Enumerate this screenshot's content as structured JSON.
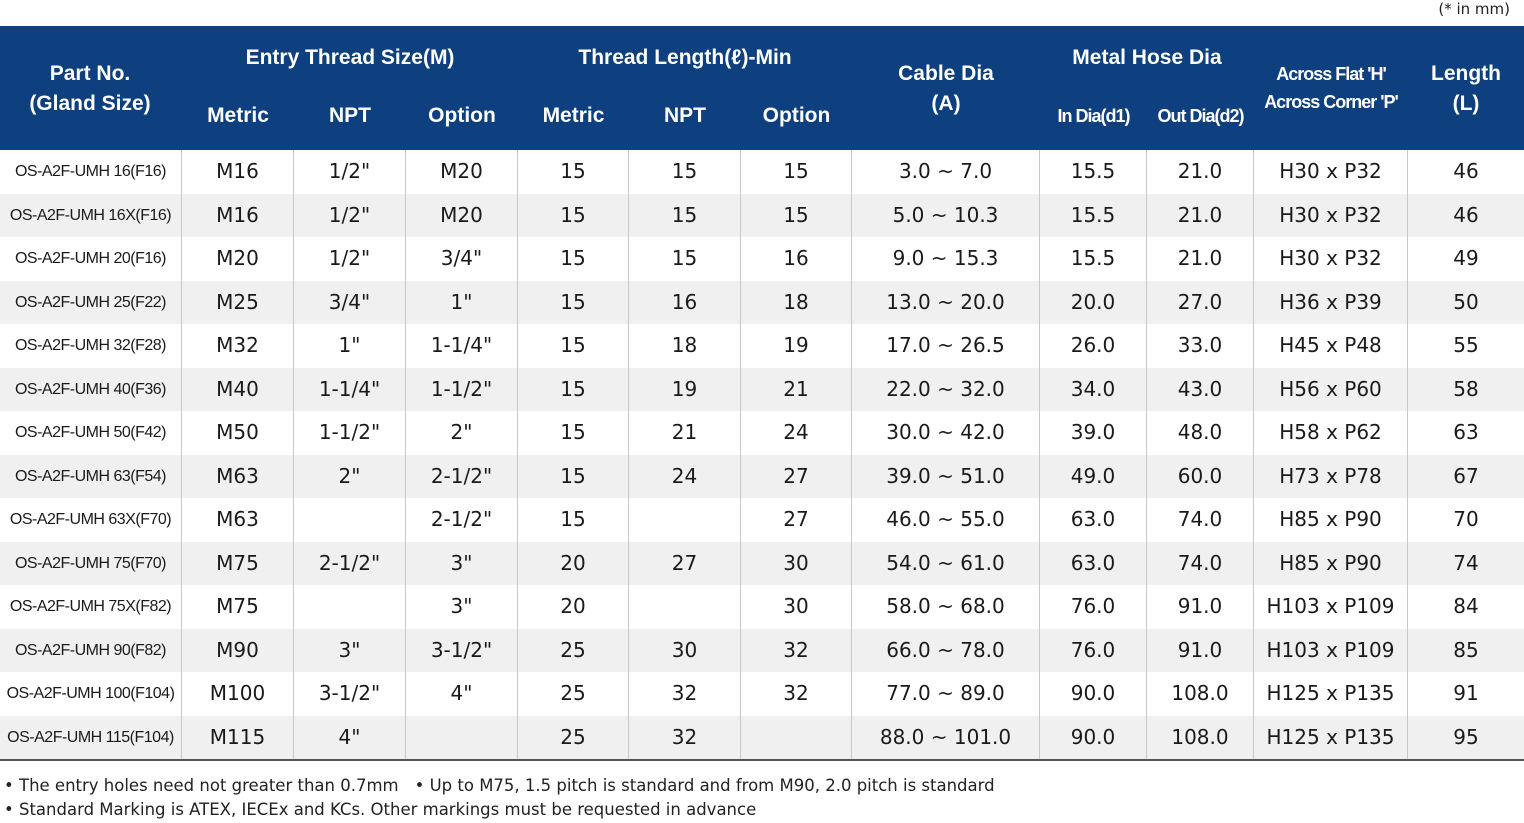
{
  "unit_note": "(* in mm)",
  "header": {
    "part_no": "Part No.",
    "gland_size": "(Gland Size)",
    "entry_thread": "Entry Thread Size(M)",
    "thread_length": "Thread Length(ℓ)-Min",
    "cable_dia": "Cable Dia",
    "cable_dia_sub": "(A)",
    "metal_hose": "Metal Hose Dia",
    "across_flat": "Across Flat 'H'",
    "across_corner": "Across Corner 'P'",
    "length": "Length",
    "length_sub": "(L)",
    "metric": "Metric",
    "npt": "NPT",
    "option": "Option",
    "in_dia": "In Dia(d1)",
    "out_dia": "Out Dia(d2)"
  },
  "rows": [
    {
      "part": "OS-A2F-UMH 16(F16)",
      "em": "M16",
      "en": "1/2\"",
      "eo": "M20",
      "tm": "15",
      "tn": "15",
      "to": "15",
      "cable": "3.0 ~ 7.0",
      "d1": "15.5",
      "d2": "21.0",
      "hp": "H30 x P32",
      "len": "46"
    },
    {
      "part": "OS-A2F-UMH 16X(F16)",
      "em": "M16",
      "en": "1/2\"",
      "eo": "M20",
      "tm": "15",
      "tn": "15",
      "to": "15",
      "cable": "5.0 ~ 10.3",
      "d1": "15.5",
      "d2": "21.0",
      "hp": "H30 x P32",
      "len": "46"
    },
    {
      "part": "OS-A2F-UMH 20(F16)",
      "em": "M20",
      "en": "1/2\"",
      "eo": "3/4\"",
      "tm": "15",
      "tn": "15",
      "to": "16",
      "cable": "9.0 ~ 15.3",
      "d1": "15.5",
      "d2": "21.0",
      "hp": "H30 x P32",
      "len": "49"
    },
    {
      "part": "OS-A2F-UMH 25(F22)",
      "em": "M25",
      "en": "3/4\"",
      "eo": "1\"",
      "tm": "15",
      "tn": "16",
      "to": "18",
      "cable": "13.0 ~ 20.0",
      "d1": "20.0",
      "d2": "27.0",
      "hp": "H36 x P39",
      "len": "50"
    },
    {
      "part": "OS-A2F-UMH 32(F28)",
      "em": "M32",
      "en": "1\"",
      "eo": "1-1/4\"",
      "tm": "15",
      "tn": "18",
      "to": "19",
      "cable": "17.0 ~ 26.5",
      "d1": "26.0",
      "d2": "33.0",
      "hp": "H45 x P48",
      "len": "55"
    },
    {
      "part": "OS-A2F-UMH 40(F36)",
      "em": "M40",
      "en": "1-1/4\"",
      "eo": "1-1/2\"",
      "tm": "15",
      "tn": "19",
      "to": "21",
      "cable": "22.0 ~ 32.0",
      "d1": "34.0",
      "d2": "43.0",
      "hp": "H56 x P60",
      "len": "58"
    },
    {
      "part": "OS-A2F-UMH 50(F42)",
      "em": "M50",
      "en": "1-1/2\"",
      "eo": "2\"",
      "tm": "15",
      "tn": "21",
      "to": "24",
      "cable": "30.0 ~ 42.0",
      "d1": "39.0",
      "d2": "48.0",
      "hp": "H58 x P62",
      "len": "63"
    },
    {
      "part": "OS-A2F-UMH 63(F54)",
      "em": "M63",
      "en": "2\"",
      "eo": "2-1/2\"",
      "tm": "15",
      "tn": "24",
      "to": "27",
      "cable": "39.0 ~ 51.0",
      "d1": "49.0",
      "d2": "60.0",
      "hp": "H73 x P78",
      "len": "67"
    },
    {
      "part": "OS-A2F-UMH 63X(F70)",
      "em": "M63",
      "en": "",
      "eo": "2-1/2\"",
      "tm": "15",
      "tn": "",
      "to": "27",
      "cable": "46.0 ~ 55.0",
      "d1": "63.0",
      "d2": "74.0",
      "hp": "H85 x P90",
      "len": "70"
    },
    {
      "part": "OS-A2F-UMH 75(F70)",
      "em": "M75",
      "en": "2-1/2\"",
      "eo": "3\"",
      "tm": "20",
      "tn": "27",
      "to": "30",
      "cable": "54.0 ~ 61.0",
      "d1": "63.0",
      "d2": "74.0",
      "hp": "H85 x P90",
      "len": "74"
    },
    {
      "part": "OS-A2F-UMH 75X(F82)",
      "em": "M75",
      "en": "",
      "eo": "3\"",
      "tm": "20",
      "tn": "",
      "to": "30",
      "cable": "58.0 ~ 68.0",
      "d1": "76.0",
      "d2": "91.0",
      "hp": "H103 x P109",
      "len": "84"
    },
    {
      "part": "OS-A2F-UMH 90(F82)",
      "em": "M90",
      "en": "3\"",
      "eo": "3-1/2\"",
      "tm": "25",
      "tn": "30",
      "to": "32",
      "cable": "66.0 ~ 78.0",
      "d1": "76.0",
      "d2": "91.0",
      "hp": "H103 x P109",
      "len": "85"
    },
    {
      "part": "OS-A2F-UMH 100(F104)",
      "em": "M100",
      "en": "3-1/2\"",
      "eo": "4\"",
      "tm": "25",
      "tn": "32",
      "to": "32",
      "cable": "77.0 ~ 89.0",
      "d1": "90.0",
      "d2": "108.0",
      "hp": "H125 x P135",
      "len": "91"
    },
    {
      "part": "OS-A2F-UMH 115(F104)",
      "em": "M115",
      "en": "4\"",
      "eo": "",
      "tm": "25",
      "tn": "32",
      "to": "",
      "cable": "88.0 ~ 101.0",
      "d1": "90.0",
      "d2": "108.0",
      "hp": "H125 x P135",
      "len": "95"
    }
  ],
  "notes": {
    "note1": "The entry holes need not greater than 0.7mm",
    "note2": "Up to M75, 1.5 pitch is standard and from M90, 2.0 pitch is standard",
    "note3": "Standard Marking is ATEX, IECEx and KCs. Other markings must be requested in advance"
  }
}
